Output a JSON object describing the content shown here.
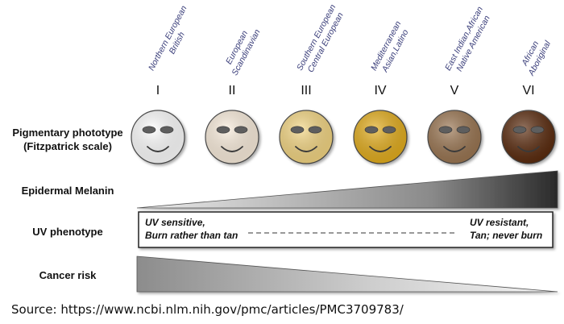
{
  "populations": [
    {
      "line1": "Northern European",
      "line2": "British"
    },
    {
      "line1": "European",
      "line2": "Scandinavian"
    },
    {
      "line1": "Southern European",
      "line2": "Central European"
    },
    {
      "line1": "Mediterranean",
      "line2": "Asian,Latino"
    },
    {
      "line1": "East Indian,African",
      "line2": "Native American"
    },
    {
      "line1": "African",
      "line2": "Aboriginal"
    }
  ],
  "phototypes": [
    "I",
    "II",
    "III",
    "IV",
    "V",
    "VI"
  ],
  "face_colors": [
    "#ffffff",
    "#fbeedd",
    "#f4d682",
    "#e3ad1c",
    "#9a7551",
    "#5a2c0e"
  ],
  "rows": {
    "pigmentary_line1": "Pigmentary phototype",
    "pigmentary_line2": "(Fitzpatrick scale)",
    "melanin": "Epidermal Melanin",
    "uv_phenotype": "UV phenotype",
    "cancer_risk": "Cancer risk"
  },
  "uv": {
    "left_line1": "UV sensitive,",
    "left_line2": "Burn rather than tan",
    "right_line1": "UV resistant,",
    "right_line2": "Tan; never burn"
  },
  "source": "Source: https://www.ncbi.nlm.nih.gov/pmc/articles/PMC3709783/"
}
